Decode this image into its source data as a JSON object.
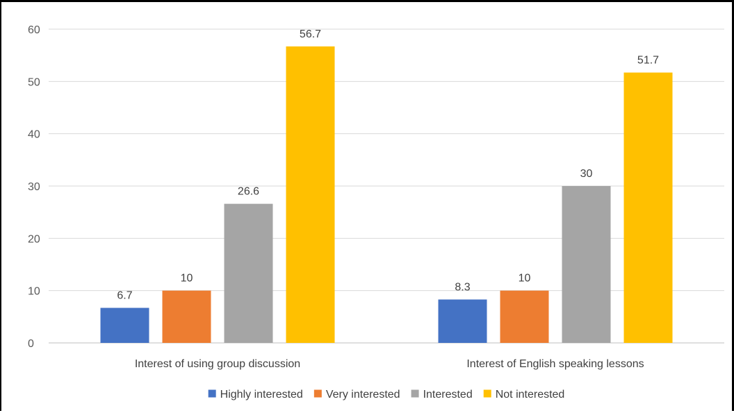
{
  "chart_data": {
    "type": "bar",
    "title": "",
    "xlabel": "",
    "ylabel": "",
    "ylim": [
      0,
      60
    ],
    "yticks": [
      0,
      10,
      20,
      30,
      40,
      50,
      60
    ],
    "grid": true,
    "legend_position": "bottom",
    "categories": [
      "Interest of using group discussion",
      "Interest of English speaking lessons"
    ],
    "series": [
      {
        "name": "Highly interested",
        "color": "#4472C4",
        "values": [
          6.7,
          8.3
        ]
      },
      {
        "name": "Very interested",
        "color": "#ED7D31",
        "values": [
          10,
          10
        ]
      },
      {
        "name": "Interested",
        "color": "#A5A5A5",
        "values": [
          26.6,
          30
        ]
      },
      {
        "name": "Not interested",
        "color": "#FFC000",
        "values": [
          56.7,
          51.7
        ]
      }
    ]
  }
}
